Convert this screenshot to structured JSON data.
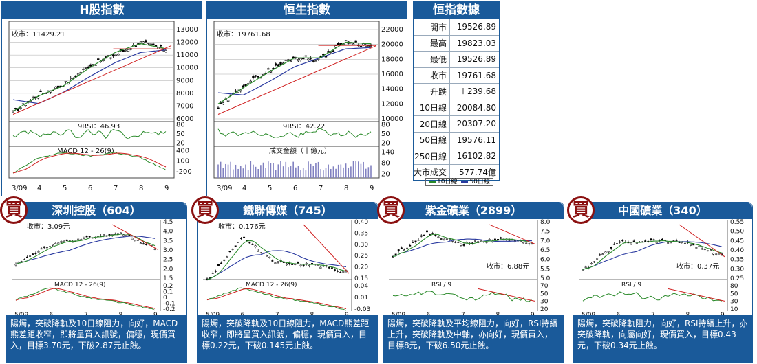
{
  "colors": {
    "header": "#1a5a9a",
    "ma10": "#2a8a2a",
    "ma50": "#2a3aa0",
    "trend": "#d02020",
    "candle": "#000000",
    "volume": "#8080c0"
  },
  "hshares": {
    "title": "H股指數",
    "close_label": "收市：11429.21",
    "rsi_label": "9RSI：46.93",
    "macd_label": "MACD 12 - 26(9)",
    "price_ticks": [
      "13000",
      "12000",
      "11000",
      "10000",
      "9000",
      "8000",
      "7000",
      "6000"
    ],
    "rsi_ticks": [
      "80",
      "50",
      "20"
    ],
    "macd_ticks": [
      "400",
      "100",
      "-200"
    ],
    "x_labels": [
      "3/09",
      "4",
      "5",
      "6",
      "7",
      "8",
      "9"
    ]
  },
  "hsi": {
    "title": "恒生指數",
    "close_label": "收市：19761.68",
    "rsi_label": "9RSI：42.22",
    "vol_label": "成交金額（十億元）",
    "price_ticks": [
      "22000",
      "20000",
      "18000",
      "16000",
      "14000",
      "12000",
      "10000"
    ],
    "rsi_ticks": [
      "80",
      "50",
      "20"
    ],
    "vol_ticks": [
      "140",
      "80",
      "20"
    ],
    "x_labels": [
      "3/09",
      "4",
      "5",
      "6",
      "7",
      "8",
      "9"
    ]
  },
  "hsi_data": {
    "title": "恒指數據",
    "rows": [
      {
        "k": "開市",
        "v": "19526.89"
      },
      {
        "k": "最高",
        "v": "19823.03"
      },
      {
        "k": "最低",
        "v": "19526.89"
      },
      {
        "k": "收市",
        "v": "19761.68"
      },
      {
        "k": "升跌",
        "v": "＋239.68"
      },
      {
        "k": "10日線",
        "v": "20084.80"
      },
      {
        "k": "20日線",
        "v": "20307.20"
      },
      {
        "k": "50日線",
        "v": "19576.11"
      },
      {
        "k": "250日線",
        "v": "16102.82"
      },
      {
        "k": "大市成交",
        "v": "577.74億"
      }
    ]
  },
  "legend": {
    "ma10": "10日線",
    "ma50": "50日線"
  },
  "buy_badge": "買",
  "stocks": [
    {
      "title": "深圳控股（604）",
      "close_label": "收市：3.09元",
      "sub_label": "MACD 12 - 26(9)",
      "price_ticks": [
        "4.5",
        "4.0",
        "3.5",
        "3.0",
        "2.5",
        "2.0",
        "1.5"
      ],
      "sub_ticks": [
        "0.2",
        "0.1",
        "0",
        "-0.1",
        "-0.2"
      ],
      "x_labels": [
        "5/09",
        "6",
        "7",
        "8",
        "9"
      ],
      "desc": "陽燭，突破降軌及10日線阻力，向好，MACD熊差距收窄，即將呈買入訊號，偏穩，現價買入，目標3.70元，下破2.87元止蝕。"
    },
    {
      "title": "鐵聯傳媒（745）",
      "close_label": "收市：0.176元",
      "sub_label": "MACD 12 - 26(9)",
      "price_ticks": [
        "0.40",
        "0.35",
        "0.30",
        "0.25",
        "0.20",
        "0.15"
      ],
      "sub_ticks": [
        "0.04",
        "0.01",
        "-0.03"
      ],
      "x_labels": [
        "5/09",
        "6",
        "7",
        "8",
        "9"
      ],
      "desc": "陽燭，突破降軌及10日線阻力，MACD熊差距收窄，即將呈買入訊號，偏穩，現價買入，目標0.22元，下破0.145元止蝕。"
    },
    {
      "title": "紫金礦業（2899）",
      "close_label": "收市：6.88元",
      "sub_label": "RSI / 9",
      "price_ticks": [
        "8.0",
        "7.5",
        "7.0",
        "6.5",
        "6.0",
        "5.5",
        "5.0"
      ],
      "sub_ticks": [
        "70",
        "50",
        "30",
        "20"
      ],
      "x_labels": [
        "5/09",
        "6",
        "7",
        "8",
        "9"
      ],
      "desc": "陽燭，突破降軌及平均線阻力，向好，RSI持續上升，突破降軌及中軸，亦向好，現價買入，目標8元，下破6.50元止蝕。"
    },
    {
      "title": "中國礦業（340）",
      "close_label": "收市：0.37元",
      "sub_label": "RSI / 9",
      "price_ticks": [
        "0.55",
        "0.50",
        "0.45",
        "0.40",
        "0.35",
        "0.30",
        "0.25"
      ],
      "sub_ticks": [
        "80",
        "50",
        "30",
        "10"
      ],
      "x_labels": [
        "5/09",
        "6",
        "7",
        "8",
        "9"
      ],
      "desc": "陽燭，突破降軌阻力，向好，RSI持續上升，亦突破降軌，向屬向好，現價買入，目標0.43元，下破0.34元止蝕。"
    }
  ],
  "chart_data": [
    {
      "type": "line",
      "title": "H股指數",
      "xlabel": "",
      "ylabel": "",
      "ylim": [
        6000,
        13000
      ],
      "x": [
        "3/09",
        "4",
        "5",
        "6",
        "7",
        "8",
        "9"
      ],
      "series": [
        {
          "name": "收市",
          "values": [
            6500,
            7900,
            8700,
            10200,
            11000,
            12000,
            11429
          ]
        },
        {
          "name": "10日線",
          "values": [
            6600,
            7800,
            8600,
            10000,
            11200,
            11900,
            11500
          ]
        },
        {
          "name": "50日線",
          "values": [
            7500,
            7200,
            8100,
            9300,
            10400,
            11200,
            11400
          ]
        }
      ]
    },
    {
      "type": "line",
      "title": "恒生指數",
      "xlabel": "",
      "ylabel": "",
      "ylim": [
        10000,
        22000
      ],
      "x": [
        "3/09",
        "4",
        "5",
        "6",
        "7",
        "8",
        "9"
      ],
      "series": [
        {
          "name": "收市",
          "values": [
            11500,
            14500,
            16500,
            18300,
            18000,
            20500,
            19762
          ]
        },
        {
          "name": "10日線",
          "values": [
            12000,
            14200,
            16300,
            18200,
            18200,
            20300,
            20085
          ]
        },
        {
          "name": "50日線",
          "values": [
            13500,
            13200,
            15000,
            17000,
            18200,
            19400,
            19576
          ]
        }
      ]
    },
    {
      "type": "line",
      "title": "深圳控股（604）",
      "ylim": [
        1.5,
        4.5
      ],
      "x": [
        "5/09",
        "6",
        "7",
        "8",
        "9"
      ],
      "series": [
        {
          "name": "收市",
          "values": [
            2.3,
            3.3,
            3.6,
            3.9,
            3.09
          ]
        }
      ]
    },
    {
      "type": "line",
      "title": "鐵聯傳媒（745）",
      "ylim": [
        0.15,
        0.4
      ],
      "x": [
        "5/09",
        "6",
        "7",
        "8",
        "9"
      ],
      "series": [
        {
          "name": "收市",
          "values": [
            0.14,
            0.33,
            0.22,
            0.21,
            0.176
          ]
        }
      ]
    },
    {
      "type": "line",
      "title": "紫金礦業（2899）",
      "ylim": [
        5.0,
        8.0
      ],
      "x": [
        "5/09",
        "6",
        "7",
        "8",
        "9"
      ],
      "series": [
        {
          "name": "收市",
          "values": [
            6.2,
            7.4,
            6.8,
            7.1,
            6.88
          ]
        }
      ]
    },
    {
      "type": "line",
      "title": "中國礦業（340）",
      "ylim": [
        0.25,
        0.55
      ],
      "x": [
        "5/09",
        "6",
        "7",
        "8",
        "9"
      ],
      "series": [
        {
          "name": "收市",
          "values": [
            0.29,
            0.44,
            0.45,
            0.44,
            0.37
          ]
        }
      ]
    }
  ]
}
